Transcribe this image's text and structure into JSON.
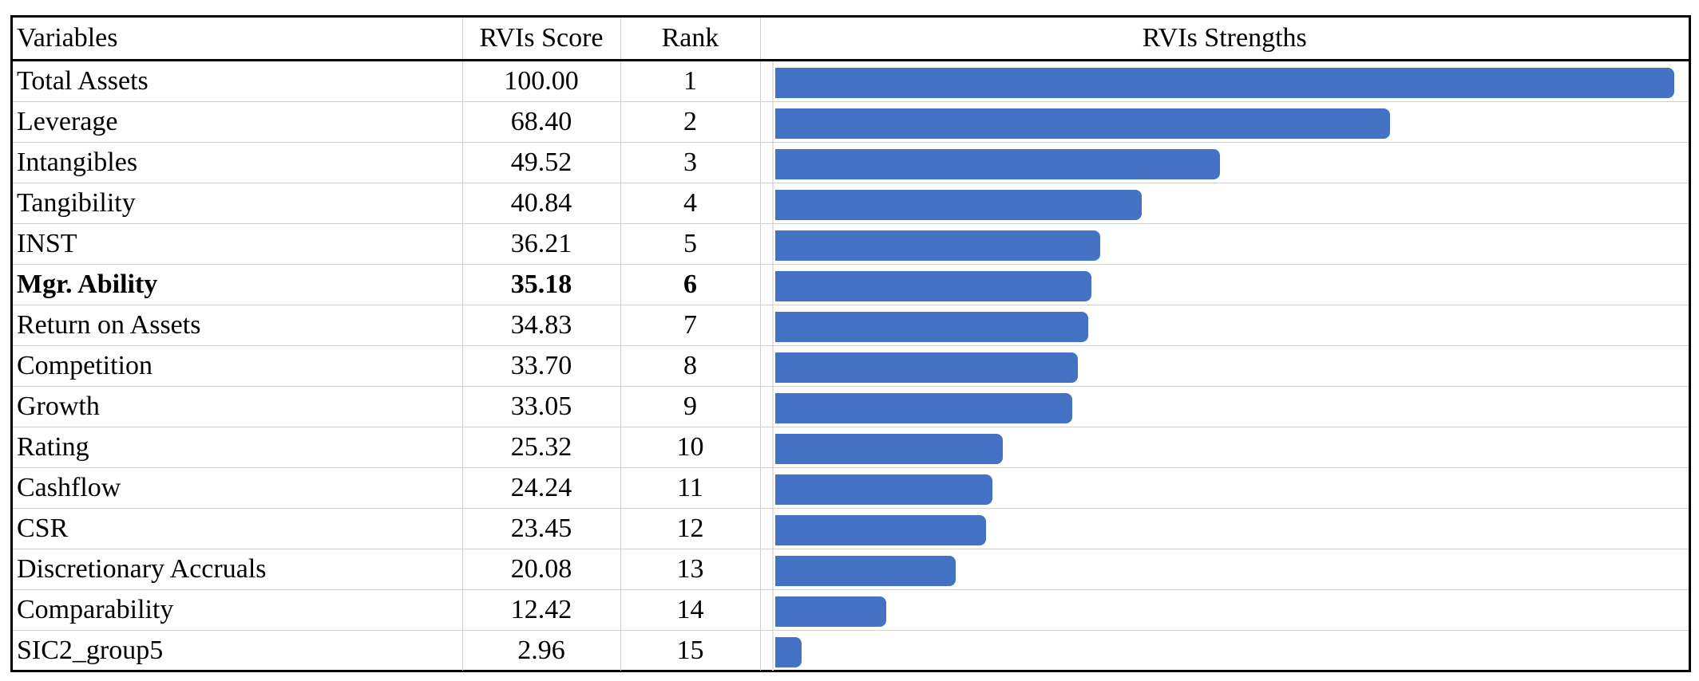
{
  "table": {
    "headers": {
      "variables": "Variables",
      "score": "RVIs Score",
      "rank": "Rank",
      "strengths": "RVIs Strengths"
    },
    "rows": [
      {
        "variable": "Total Assets",
        "score": "100.00",
        "rank": "1",
        "bold": false
      },
      {
        "variable": "Leverage",
        "score": "68.40",
        "rank": "2",
        "bold": false
      },
      {
        "variable": "Intangibles",
        "score": "49.52",
        "rank": "3",
        "bold": false
      },
      {
        "variable": "Tangibility",
        "score": "40.84",
        "rank": "4",
        "bold": false
      },
      {
        "variable": "INST",
        "score": "36.21",
        "rank": "5",
        "bold": false
      },
      {
        "variable": "Mgr. Ability",
        "score": "35.18",
        "rank": "6",
        "bold": true
      },
      {
        "variable": "Return on Assets",
        "score": "34.83",
        "rank": "7",
        "bold": false
      },
      {
        "variable": "Competition",
        "score": "33.70",
        "rank": "8",
        "bold": false
      },
      {
        "variable": "Growth",
        "score": "33.05",
        "rank": "9",
        "bold": false
      },
      {
        "variable": "Rating",
        "score": "25.32",
        "rank": "10",
        "bold": false
      },
      {
        "variable": "Cashflow",
        "score": "24.24",
        "rank": "11",
        "bold": false
      },
      {
        "variable": "CSR",
        "score": "23.45",
        "rank": "12",
        "bold": false
      },
      {
        "variable": "Discretionary Accruals",
        "score": "20.08",
        "rank": "13",
        "bold": false
      },
      {
        "variable": "Comparability",
        "score": "12.42",
        "rank": "14",
        "bold": false
      },
      {
        "variable": "SIC2_group5",
        "score": "2.96",
        "rank": "15",
        "bold": false
      }
    ]
  },
  "chart_data": {
    "type": "bar",
    "orientation": "horizontal",
    "categories": [
      "Total Assets",
      "Leverage",
      "Intangibles",
      "Tangibility",
      "INST",
      "Mgr. Ability",
      "Return on Assets",
      "Competition",
      "Growth",
      "Rating",
      "Cashflow",
      "CSR",
      "Discretionary Accruals",
      "Comparability",
      "SIC2_group5"
    ],
    "values": [
      100.0,
      68.4,
      49.52,
      40.84,
      36.21,
      35.18,
      34.83,
      33.7,
      33.05,
      25.32,
      24.24,
      23.45,
      20.08,
      12.42,
      2.96
    ],
    "title": "RVIs Strengths",
    "xlim": [
      0,
      100
    ],
    "grid": false,
    "bar_color": "#4472c4"
  }
}
